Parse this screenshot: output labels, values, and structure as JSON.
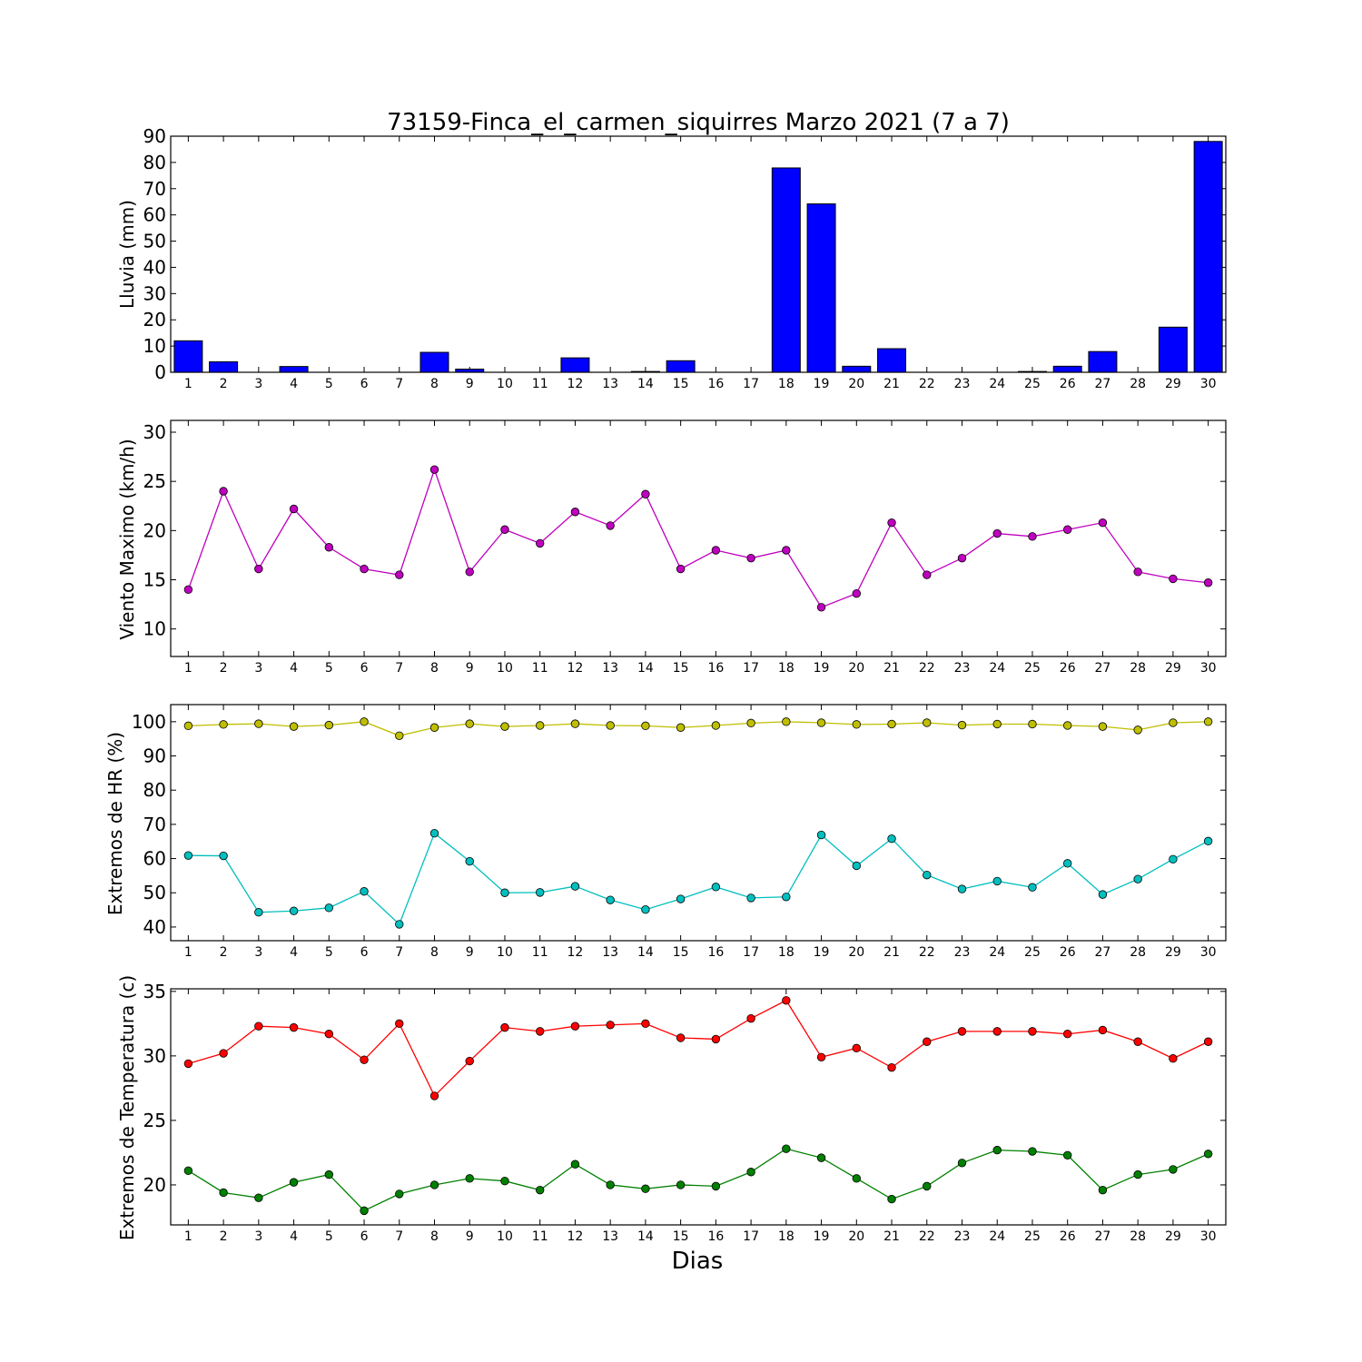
{
  "title": "73159-Finca_el_carmen_siquirres Marzo 2021  (7 a 7)",
  "xlabel": "Dias",
  "chart_data": [
    {
      "type": "bar",
      "ylabel": "Lluvia (mm)",
      "x": [
        1,
        2,
        3,
        4,
        5,
        6,
        7,
        8,
        9,
        10,
        11,
        12,
        13,
        14,
        15,
        16,
        17,
        18,
        19,
        20,
        21,
        22,
        23,
        24,
        25,
        26,
        27,
        28,
        29,
        30
      ],
      "ylim": [
        0,
        90
      ],
      "yticks": [
        0,
        10,
        20,
        30,
        40,
        50,
        60,
        70,
        80,
        90
      ],
      "series": [
        {
          "color": "#0000ff",
          "values": [
            12.0,
            4.0,
            0.0,
            2.2,
            0.0,
            0.0,
            0.0,
            7.6,
            1.2,
            0.0,
            0.0,
            5.5,
            0.0,
            0.3,
            4.4,
            0.0,
            0.0,
            77.9,
            64.2,
            2.3,
            9.0,
            0.0,
            0.0,
            0.0,
            0.3,
            2.3,
            7.9,
            0.0,
            17.2,
            88.0
          ]
        }
      ]
    },
    {
      "type": "line",
      "ylabel": "Viento Maximo (km/h)",
      "x": [
        1,
        2,
        3,
        4,
        5,
        6,
        7,
        8,
        9,
        10,
        11,
        12,
        13,
        14,
        15,
        16,
        17,
        18,
        19,
        20,
        21,
        22,
        23,
        24,
        25,
        26,
        27,
        28,
        29,
        30
      ],
      "ylim": [
        7.2,
        31.2
      ],
      "yticks": [
        10,
        15,
        20,
        25,
        30
      ],
      "series": [
        {
          "color": "#bf00bf",
          "values": [
            14.0,
            24.0,
            16.1,
            22.2,
            18.3,
            16.1,
            15.5,
            26.2,
            15.8,
            20.1,
            18.7,
            21.9,
            20.5,
            23.7,
            16.1,
            18.0,
            17.2,
            18.0,
            12.2,
            13.6,
            20.8,
            15.5,
            17.2,
            19.7,
            19.4,
            20.1,
            20.8,
            15.8,
            15.1,
            14.7
          ]
        }
      ]
    },
    {
      "type": "line",
      "ylabel": "Extremos de HR (%)",
      "x": [
        1,
        2,
        3,
        4,
        5,
        6,
        7,
        8,
        9,
        10,
        11,
        12,
        13,
        14,
        15,
        16,
        17,
        18,
        19,
        20,
        21,
        22,
        23,
        24,
        25,
        26,
        27,
        28,
        29,
        30
      ],
      "ylim": [
        36.0,
        105.0
      ],
      "yticks": [
        40,
        50,
        60,
        70,
        80,
        90,
        100
      ],
      "series": [
        {
          "color": "#bfbf00",
          "values": [
            98.8,
            99.2,
            99.4,
            98.6,
            99.0,
            100.0,
            95.9,
            98.3,
            99.4,
            98.6,
            98.9,
            99.4,
            98.9,
            98.8,
            98.3,
            98.9,
            99.6,
            100.0,
            99.7,
            99.2,
            99.3,
            99.7,
            99.0,
            99.3,
            99.3,
            98.9,
            98.6,
            97.6,
            99.7,
            100.0
          ]
        },
        {
          "color": "#00bfbf",
          "values": [
            60.9,
            60.8,
            44.3,
            44.7,
            45.6,
            50.4,
            40.8,
            67.4,
            59.2,
            50.0,
            50.1,
            51.9,
            47.9,
            45.1,
            48.2,
            51.7,
            48.5,
            48.8,
            66.9,
            57.9,
            65.8,
            55.2,
            51.1,
            53.4,
            51.6,
            58.6,
            49.5,
            54.0,
            59.8,
            65.1
          ]
        }
      ]
    },
    {
      "type": "line",
      "ylabel": "Extremos de Temperatura (c)",
      "x": [
        1,
        2,
        3,
        4,
        5,
        6,
        7,
        8,
        9,
        10,
        11,
        12,
        13,
        14,
        15,
        16,
        17,
        18,
        19,
        20,
        21,
        22,
        23,
        24,
        25,
        26,
        27,
        28,
        29,
        30
      ],
      "ylim": [
        16.9,
        35.2
      ],
      "yticks": [
        20,
        25,
        30,
        35
      ],
      "series": [
        {
          "color": "#ff0000",
          "values": [
            29.4,
            30.2,
            32.3,
            32.2,
            31.7,
            29.7,
            32.5,
            26.9,
            29.6,
            32.2,
            31.9,
            32.3,
            32.4,
            32.5,
            31.4,
            31.3,
            32.9,
            34.3,
            29.9,
            30.6,
            29.1,
            31.1,
            31.9,
            31.9,
            31.9,
            31.7,
            32.0,
            31.1,
            29.8,
            31.1
          ]
        },
        {
          "color": "#008000",
          "values": [
            21.1,
            19.4,
            19.0,
            20.2,
            20.8,
            18.0,
            19.3,
            20.0,
            20.5,
            20.3,
            19.6,
            21.6,
            20.0,
            19.7,
            20.0,
            19.9,
            21.0,
            22.8,
            22.1,
            20.5,
            18.9,
            19.9,
            21.7,
            22.7,
            22.6,
            22.3,
            19.6,
            20.8,
            21.2,
            22.4
          ]
        }
      ]
    }
  ]
}
